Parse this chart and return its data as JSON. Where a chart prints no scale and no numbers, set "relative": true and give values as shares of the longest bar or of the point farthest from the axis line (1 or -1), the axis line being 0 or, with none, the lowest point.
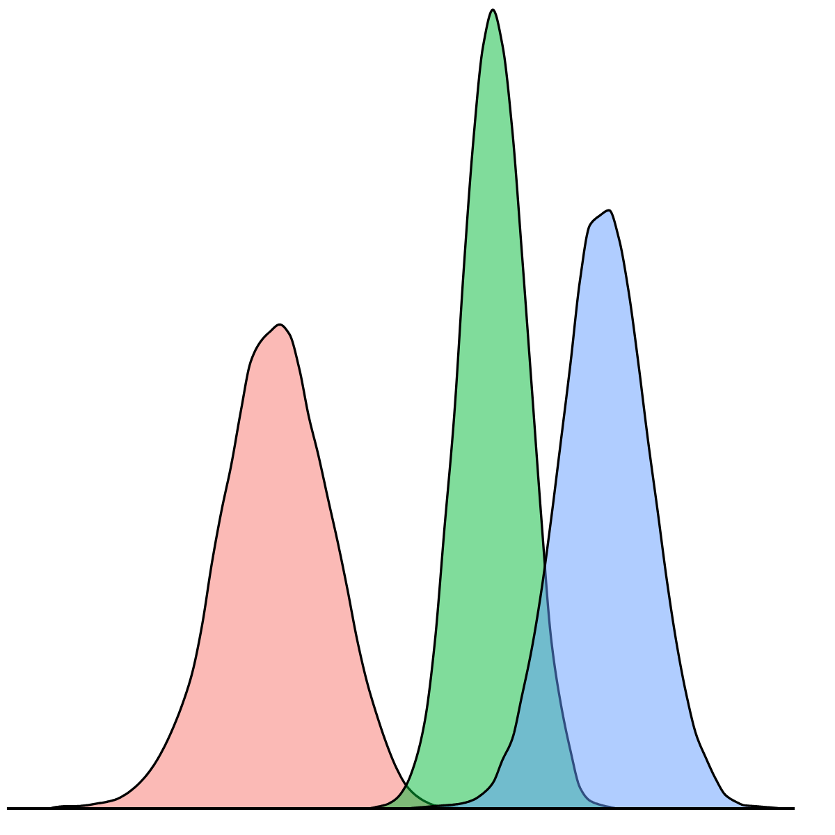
{
  "chart_data": {
    "type": "area",
    "relative": true,
    "categories": [
      null,
      null,
      null,
      null,
      null,
      null,
      null,
      null,
      null,
      null,
      null,
      null,
      null,
      null,
      null,
      null,
      null,
      null,
      null,
      null,
      null,
      null,
      null,
      null,
      null,
      null,
      null,
      null,
      null,
      null,
      null,
      null,
      null,
      null,
      null,
      null,
      null,
      null,
      null,
      null,
      null,
      null,
      null,
      null,
      null,
      null,
      null,
      null,
      null,
      null,
      null,
      null,
      null,
      null,
      null,
      null,
      null,
      null,
      null,
      null,
      null,
      null,
      null,
      null,
      null,
      null,
      null,
      null,
      null,
      null,
      null,
      null,
      null,
      null,
      null,
      null,
      null,
      null,
      null,
      null,
      null,
      null
    ],
    "series": [
      {
        "color": "#fbbab6",
        "values": [
          0,
          0,
          0,
          0,
          0,
          0.002,
          0.003,
          0.003,
          0.004,
          0.006,
          0.008,
          0.011,
          0.017,
          0.026,
          0.038,
          0.054,
          0.075,
          0.101,
          0.132,
          0.171,
          0.23,
          0.307,
          0.373,
          0.43,
          0.498,
          0.559,
          0.584,
          0.597,
          0.606,
          0.594,
          0.552,
          0.491,
          0.442,
          0.387,
          0.333,
          0.274,
          0.211,
          0.159,
          0.118,
          0.082,
          0.052,
          0.03,
          0.017,
          0.009,
          0.004,
          0.002,
          0.001,
          0,
          0,
          0,
          0,
          0,
          0,
          0,
          0,
          0,
          0,
          0,
          0,
          0,
          0,
          0,
          0,
          0,
          0,
          0,
          0,
          0,
          0,
          0,
          0,
          0,
          0,
          0,
          0,
          0,
          0,
          0,
          0,
          0,
          0,
          0
        ]
      },
      {
        "color": "#80dc9b",
        "values": [
          0,
          0,
          0,
          0,
          0,
          0,
          0,
          0,
          0,
          0,
          0,
          0,
          0,
          0,
          0,
          0,
          0,
          0,
          0,
          0,
          0,
          0,
          0,
          0,
          0,
          0,
          0,
          0,
          0,
          0,
          0,
          0,
          0,
          0,
          0,
          0,
          0,
          0,
          0.002,
          0.005,
          0.012,
          0.028,
          0.059,
          0.111,
          0.207,
          0.35,
          0.49,
          0.676,
          0.838,
          0.955,
          1,
          0.955,
          0.85,
          0.695,
          0.53,
          0.364,
          0.214,
          0.132,
          0.073,
          0.026,
          0.01,
          0.005,
          0.002,
          0,
          0,
          0,
          0,
          0,
          0,
          0,
          0,
          0,
          0,
          0,
          0,
          0,
          0,
          0,
          0,
          0,
          0,
          0
        ]
      },
      {
        "color": "#b0cdff",
        "values": [
          0,
          0,
          0,
          0,
          0,
          0,
          0,
          0,
          0,
          0,
          0,
          0,
          0,
          0,
          0,
          0,
          0,
          0,
          0,
          0,
          0,
          0,
          0,
          0,
          0,
          0,
          0,
          0,
          0,
          0,
          0,
          0,
          0,
          0,
          0,
          0,
          0,
          0,
          0,
          0,
          0,
          0,
          0.001,
          0.002,
          0.003,
          0.004,
          0.005,
          0.007,
          0.011,
          0.019,
          0.032,
          0.061,
          0.087,
          0.141,
          0.199,
          0.272,
          0.361,
          0.458,
          0.556,
          0.662,
          0.73,
          0.742,
          0.749,
          0.714,
          0.648,
          0.559,
          0.462,
          0.373,
          0.282,
          0.204,
          0.141,
          0.092,
          0.063,
          0.037,
          0.017,
          0.009,
          0.004,
          0.003,
          0.002,
          0.001,
          0,
          0
        ]
      }
    ]
  }
}
